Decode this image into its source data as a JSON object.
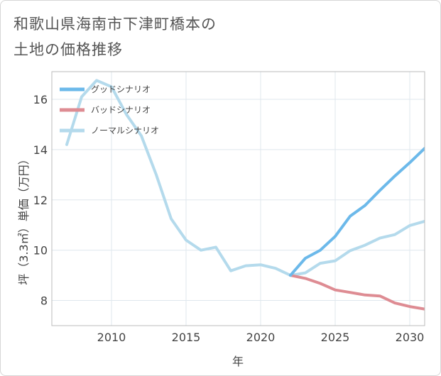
{
  "title_lines": [
    "和歌山県海南市下津町橋本の",
    "土地の価格推移"
  ],
  "chart_data": {
    "type": "line",
    "title": "和歌山県海南市下津町橋本の土地の価格推移",
    "xlabel": "年",
    "ylabel": "坪（3.3㎡）単価（万円）",
    "xlim": [
      2006,
      2031
    ],
    "ylim": [
      7,
      17.1
    ],
    "xticks": [
      2010,
      2015,
      2020,
      2025,
      2030
    ],
    "yticks": [
      8,
      10,
      12,
      14,
      16
    ],
    "grid": true,
    "legend_position": "top-left",
    "series": [
      {
        "name": "グッドシナリオ",
        "color": "#6cb9ea",
        "x": [
          2022,
          2023,
          2024,
          2025,
          2026,
          2027,
          2028,
          2029,
          2030,
          2031
        ],
        "y": [
          9.0,
          9.68,
          10.0,
          10.55,
          11.35,
          11.78,
          12.38,
          12.95,
          13.48,
          14.05
        ]
      },
      {
        "name": "バッドシナリオ",
        "color": "#de8c93",
        "x": [
          2022,
          2023,
          2024,
          2025,
          2026,
          2027,
          2028,
          2029,
          2030,
          2031
        ],
        "y": [
          9.0,
          8.88,
          8.68,
          8.42,
          8.32,
          8.22,
          8.18,
          7.9,
          7.76,
          7.66
        ]
      },
      {
        "name": "ノーマルシナリオ",
        "color": "#b4daec",
        "x": [
          2007,
          2008,
          2009,
          2010,
          2011,
          2012,
          2013,
          2014,
          2015,
          2016,
          2017,
          2018,
          2019,
          2020,
          2021,
          2022,
          2023,
          2024,
          2025,
          2026,
          2027,
          2028,
          2029,
          2030,
          2031
        ],
        "y": [
          14.2,
          16.1,
          16.75,
          16.5,
          15.4,
          14.55,
          13.0,
          11.25,
          10.4,
          10.0,
          10.12,
          9.18,
          9.38,
          9.42,
          9.28,
          9.0,
          9.1,
          9.48,
          9.58,
          9.98,
          10.2,
          10.48,
          10.62,
          10.98,
          11.15
        ]
      }
    ]
  }
}
